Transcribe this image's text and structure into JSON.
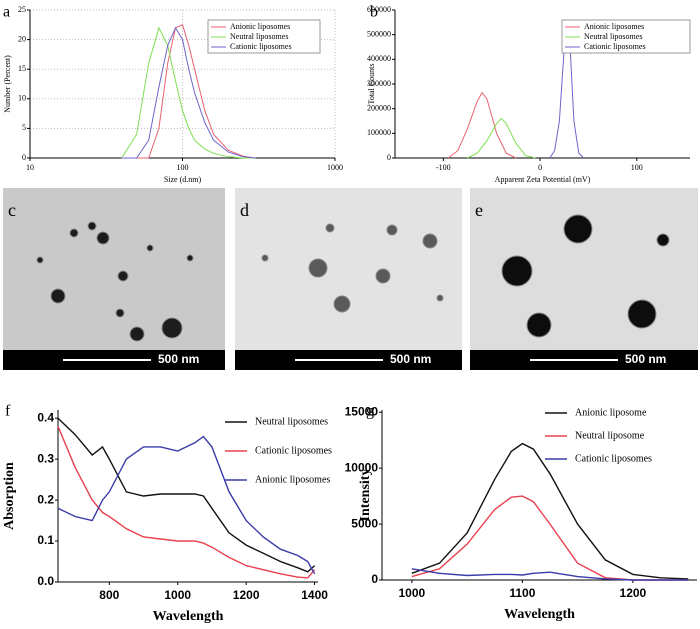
{
  "chart_data": [
    {
      "type": "line",
      "panel": "a",
      "xlabel": "Size (d.nm)",
      "ylabel": "Number (Percent)",
      "xscale": "log",
      "grid": true,
      "legend": "upper right",
      "legend_frame": true,
      "xlim": [
        10,
        1000
      ],
      "xticks": [
        10,
        100,
        1000
      ],
      "ylim": [
        0,
        25
      ],
      "yticks": [
        0,
        5,
        10,
        15,
        20,
        25
      ],
      "x": [
        40,
        50,
        60,
        70,
        80,
        90,
        100,
        110,
        120,
        140,
        160,
        200,
        250,
        300
      ],
      "series": [
        {
          "name": "Anionic liposomes",
          "color": "#e8606e",
          "values": [
            0,
            0,
            0,
            5,
            16,
            22,
            22.5,
            19,
            15,
            8,
            4,
            1.3,
            0.3,
            0
          ]
        },
        {
          "name": "Neutral liposomes",
          "color": "#7ce050",
          "values": [
            0,
            4,
            16,
            22,
            19,
            13,
            8,
            5,
            3,
            1.5,
            0.8,
            0.2,
            0,
            0
          ]
        },
        {
          "name": "Cationic liposomes",
          "color": "#6a66cc",
          "values": [
            0,
            0,
            3,
            12,
            19,
            22,
            20,
            15,
            11,
            6,
            3,
            1,
            0.2,
            0
          ]
        }
      ]
    },
    {
      "type": "line",
      "panel": "b",
      "xlabel": "Apparent Zeta Potential (mV)",
      "ylabel": "Total Counts",
      "grid": false,
      "legend": "upper right",
      "legend_frame": true,
      "xlim": [
        -150,
        155
      ],
      "xticks": [
        -100,
        0,
        100
      ],
      "ylim": [
        0,
        600000
      ],
      "yticks": [
        0,
        100000,
        200000,
        300000,
        400000,
        500000,
        600000
      ],
      "series": [
        {
          "name": "Anionic liposomes",
          "color": "#e8606e",
          "x": [
            -95,
            -85,
            -75,
            -65,
            -60,
            -55,
            -45,
            -35,
            -25
          ],
          "values": [
            0,
            30000,
            120000,
            230000,
            265000,
            240000,
            100000,
            20000,
            0
          ]
        },
        {
          "name": "Neutral liposomes",
          "color": "#7ce050",
          "x": [
            -75,
            -65,
            -55,
            -45,
            -40,
            -35,
            -25,
            -15,
            -5
          ],
          "values": [
            0,
            20000,
            70000,
            140000,
            160000,
            140000,
            60000,
            10000,
            0
          ]
        },
        {
          "name": "Cationic liposomes",
          "color": "#6a66cc",
          "x": [
            10,
            15,
            20,
            25,
            28,
            31,
            35,
            40,
            45
          ],
          "values": [
            0,
            30000,
            150000,
            450000,
            540000,
            450000,
            150000,
            20000,
            0
          ]
        }
      ]
    },
    {
      "type": "line",
      "panel": "f",
      "xlabel": "Wavelength",
      "ylabel": "Absorption",
      "grid": false,
      "legend": "upper right",
      "legend_frame": false,
      "xlim": [
        650,
        1410
      ],
      "xticks": [
        800,
        1000,
        1200,
        1400
      ],
      "ylim": [
        0,
        0.42
      ],
      "yticks": [
        {
          "value": 0,
          "label": "0.0"
        },
        0.1,
        0.2,
        0.3,
        0.4
      ],
      "x": [
        650,
        700,
        750,
        780,
        800,
        850,
        900,
        950,
        1000,
        1050,
        1075,
        1100,
        1150,
        1200,
        1250,
        1300,
        1350,
        1380,
        1400
      ],
      "series": [
        {
          "name": "Neutral liposomes",
          "color": "#111111",
          "values": [
            0.4,
            0.36,
            0.31,
            0.33,
            0.3,
            0.22,
            0.21,
            0.215,
            0.215,
            0.215,
            0.21,
            0.18,
            0.12,
            0.09,
            0.07,
            0.05,
            0.035,
            0.025,
            0.04
          ]
        },
        {
          "name": "Cationic liposomes",
          "color": "#e8404e",
          "values": [
            0.38,
            0.28,
            0.2,
            0.17,
            0.16,
            0.13,
            0.11,
            0.105,
            0.1,
            0.1,
            0.095,
            0.085,
            0.06,
            0.04,
            0.03,
            0.02,
            0.012,
            0.01,
            0.03
          ]
        },
        {
          "name": "Anionic liposomes",
          "color": "#3a3aa8",
          "values": [
            0.18,
            0.16,
            0.15,
            0.2,
            0.22,
            0.3,
            0.33,
            0.33,
            0.32,
            0.34,
            0.355,
            0.33,
            0.22,
            0.15,
            0.11,
            0.08,
            0.065,
            0.05,
            0.02
          ]
        }
      ]
    },
    {
      "type": "line",
      "panel": "g",
      "xlabel": "Wavelength",
      "ylabel": "Intensity",
      "grid": false,
      "legend": "upper right",
      "legend_frame": false,
      "xlim": [
        973,
        1258
      ],
      "xticks": [
        1000,
        1100,
        1200
      ],
      "ylim": [
        0,
        15200
      ],
      "yticks": [
        0,
        5000,
        10000,
        15000
      ],
      "x": [
        1000,
        1025,
        1050,
        1075,
        1090,
        1100,
        1110,
        1125,
        1150,
        1175,
        1200,
        1225,
        1250
      ],
      "series": [
        {
          "name": "Anionic liposome",
          "color": "#111111",
          "values": [
            600,
            1500,
            4200,
            9000,
            11500,
            12200,
            11700,
            9500,
            5000,
            1800,
            500,
            200,
            100
          ]
        },
        {
          "name": "Neutral liposome",
          "color": "#e8404e",
          "values": [
            300,
            1000,
            3200,
            6300,
            7400,
            7500,
            7000,
            5000,
            1500,
            200,
            0,
            0,
            0
          ]
        },
        {
          "name": "Cationic liposomes",
          "color": "#3a3aa8",
          "values": [
            1000,
            600,
            400,
            500,
            500,
            450,
            600,
            700,
            300,
            100,
            0,
            0,
            0
          ]
        }
      ]
    }
  ],
  "images": [
    {
      "panel": "c",
      "scale_bar": "500 nm"
    },
    {
      "panel": "d",
      "scale_bar": "500 nm"
    },
    {
      "panel": "e",
      "scale_bar": "500 nm"
    }
  ]
}
